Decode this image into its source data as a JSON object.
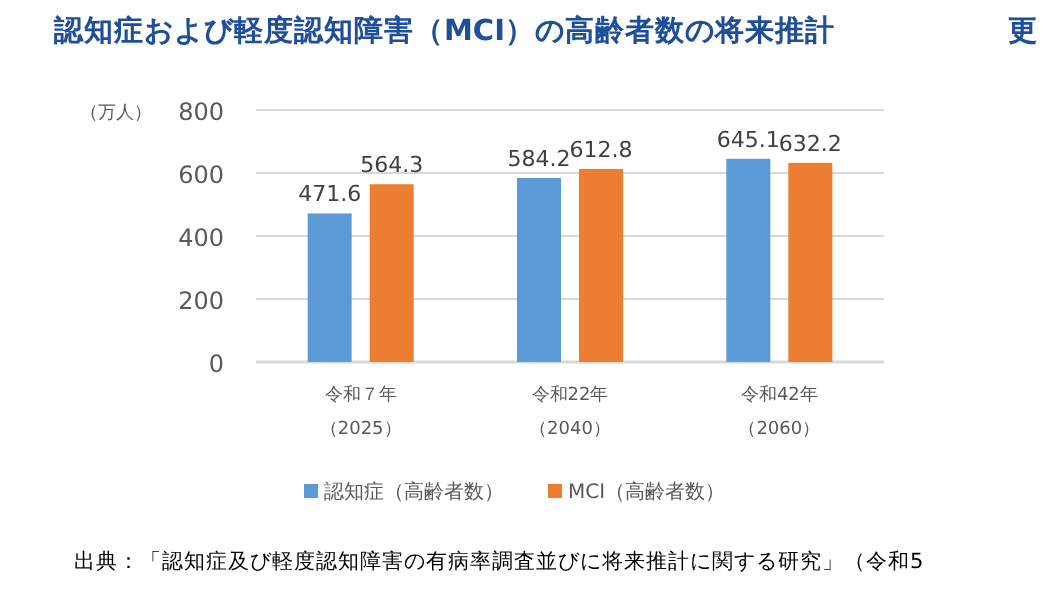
{
  "chart_data": {
    "type": "bar",
    "title": "認知症および軽度認知障害（MCI）の高齢者数の将来推計",
    "ylabel": "（万人）",
    "annotations": [
      "更",
      "出典：「認知症及び軽度認知障害の有病率調査並びに将来推計に関する研究」（令和5"
    ],
    "categories": [
      "令和７年（2025）",
      "令和22年（2040）",
      "令和42年（2060）"
    ],
    "series": [
      {
        "name": "認知症（高齢者数）",
        "color": "#5b9bd5",
        "values": [
          471.6,
          584.2,
          645.1
        ]
      },
      {
        "name": "MCI（高齢者数）",
        "color": "#ed7d31",
        "values": [
          564.3,
          612.8,
          632.2
        ]
      }
    ],
    "ylim": [
      0,
      800
    ],
    "yticks": [
      0,
      200,
      400,
      600,
      800
    ],
    "grid": "y",
    "legend": "bottom",
    "data_labels": true
  }
}
